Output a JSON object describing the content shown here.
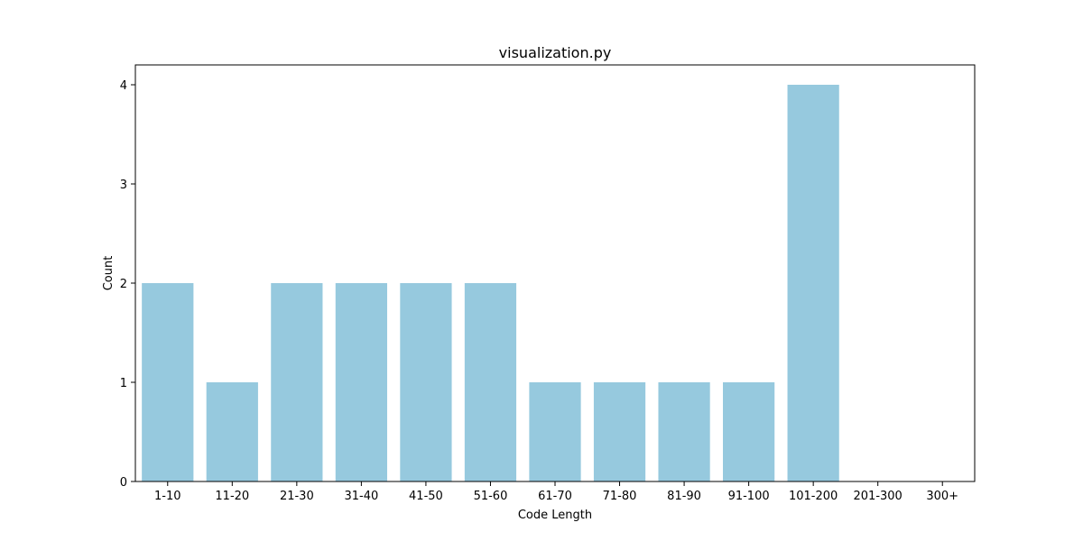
{
  "chart_data": {
    "type": "bar",
    "title": "visualization.py",
    "xlabel": "Code Length",
    "ylabel": "Count",
    "categories": [
      "1-10",
      "11-20",
      "21-30",
      "31-40",
      "41-50",
      "51-60",
      "61-70",
      "71-80",
      "81-90",
      "91-100",
      "101-200",
      "201-300",
      "300+"
    ],
    "values": [
      2,
      1,
      2,
      2,
      2,
      2,
      1,
      1,
      1,
      1,
      4,
      0,
      0
    ],
    "ylim": [
      0,
      4.2
    ],
    "yticks": [
      0,
      1,
      2,
      3,
      4
    ],
    "bar_color": "#96c9de",
    "grid": false,
    "legend": false
  }
}
